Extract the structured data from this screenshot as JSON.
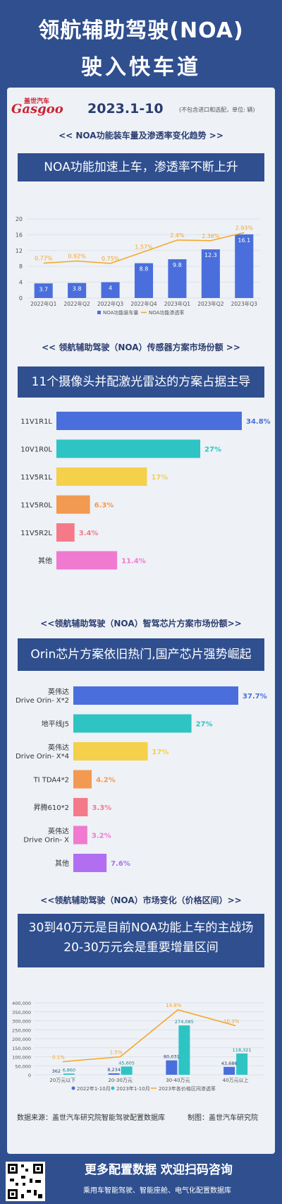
{
  "header": {
    "title_line1": "领航辅助驾驶(NOA)",
    "title_line2": "驶入快车道"
  },
  "brand": {
    "name_cn": "盖世汽车",
    "name_en": "Gasgoo"
  },
  "date": "2023.1-10",
  "note": "(不包含进口和选配，单位: 辆)",
  "sections": [
    {
      "title": "<< NOA功能装车量及渗透率变化趋势 >>",
      "banner": "NOA功能加速上车，渗透率不断上升"
    },
    {
      "title": "<< 领航辅助驾驶（NOA）传感器方案市场份额 >>",
      "banner": "11个摄像头并配激光雷达的方案占据主导"
    },
    {
      "title": "<<领航辅助驾驶（NOA）智驾芯片方案市场份额>>",
      "banner": "Orin芯片方案依旧热门,国产芯片强势崛起"
    },
    {
      "title": "<<领航辅助驾驶（NOA）市场变化（价格区间）>>",
      "banner_line1": "30到40万元是目前NOA功能上车的主战场",
      "banner_line2": "20-30万元会是重要增量区间"
    }
  ],
  "footer": {
    "source": "数据来源：盖世汽车研究院智能驾驶配置数据库",
    "maker": "制图：盖世汽车研究院",
    "cta": "更多配置数据  欢迎扫码咨询",
    "cta_sub": "乘用车智能驾驶、智能座舱、电气化配置数据库"
  },
  "colors": {
    "navy": "#2f4f8f",
    "bar_blue": "#4a6fdc",
    "line_orange": "#f5a623",
    "teal": "#2ec4c4",
    "yellow": "#f5d04a",
    "orange": "#f29a52",
    "pink": "#f47a8a",
    "magenta": "#f07ad0",
    "purple": "#b26ef0"
  },
  "chart_data": [
    {
      "type": "bar",
      "categories": [
        "2022年Q1",
        "2022年Q2",
        "2022年Q3",
        "2022年Q4",
        "2023年Q1",
        "2023年Q2",
        "2023年Q3"
      ],
      "series": [
        {
          "name": "NOA功能装车量",
          "values": [
            3.7,
            3.8,
            4,
            8.8,
            9.8,
            12.3,
            16.1
          ]
        },
        {
          "name": "NOA功能渗透率",
          "type": "line",
          "values": [
            0.77,
            0.92,
            0.75,
            1.57,
            2.4,
            2.36,
            2.93
          ],
          "labels": [
            "0.77%",
            "0.92%",
            "0.75%",
            "1.57%",
            "2.4%",
            "2.36%",
            "2.93%"
          ]
        }
      ],
      "yticks": [
        "0",
        "4",
        "8",
        "12",
        "16",
        "20"
      ],
      "ylim": [
        0,
        20
      ],
      "legend": "bottom"
    },
    {
      "type": "bar",
      "orientation": "horizontal",
      "categories": [
        "11V1R1L",
        "10V1R0L",
        "11V5R1L",
        "11V5R0L",
        "11V5R2L",
        "其他"
      ],
      "values": [
        34.8,
        27,
        17,
        6.3,
        3.4,
        11.4
      ],
      "labels": [
        "34.8%",
        "27%",
        "17%",
        "6.3%",
        "3.4%",
        "11.4%"
      ]
    },
    {
      "type": "bar",
      "orientation": "horizontal",
      "categories": [
        [
          "英伟达",
          "Drive Orin- X*2"
        ],
        [
          "地平线J5"
        ],
        [
          "英伟达",
          "Drive Orin- X*4"
        ],
        [
          "TI TDA4*2"
        ],
        [
          "昇腾610*2"
        ],
        [
          "英伟达",
          "Drive Orin- X"
        ],
        [
          "其他"
        ]
      ],
      "values": [
        37.7,
        27,
        17,
        4.2,
        3.3,
        3.2,
        7.6
      ],
      "labels": [
        "37.7%",
        "27%",
        "17%",
        "4.2%",
        "3.3%",
        "3.2%",
        "7.6%"
      ]
    },
    {
      "type": "bar",
      "categories": [
        "20万元以下",
        "20-30万元",
        "30-40万元",
        "40万元以上"
      ],
      "series": [
        {
          "name": "2022年1-10月",
          "values": [
            362,
            8234,
            80031,
            43686
          ],
          "labels": [
            "362",
            "8,234",
            "80,031",
            "43,686"
          ]
        },
        {
          "name": "2023年1-10月",
          "values": [
            6860,
            45605,
            274085,
            118321
          ],
          "labels": [
            "6,860",
            "45,605",
            "274,085",
            "118,321"
          ]
        },
        {
          "name": "2023年各价格区间渗透率",
          "type": "line",
          "values": [
            0.1,
            1.5,
            14.8,
            10.3
          ],
          "labels": [
            "0.1%",
            "1.5%",
            "14.8%",
            "10.3%"
          ]
        }
      ],
      "yticks": [
        "0",
        "50,000",
        "100,000",
        "150,000",
        "200,000",
        "250,000",
        "300,000",
        "350,000",
        "400,000"
      ],
      "ylim": [
        0,
        400000
      ],
      "legend": "bottom"
    }
  ]
}
